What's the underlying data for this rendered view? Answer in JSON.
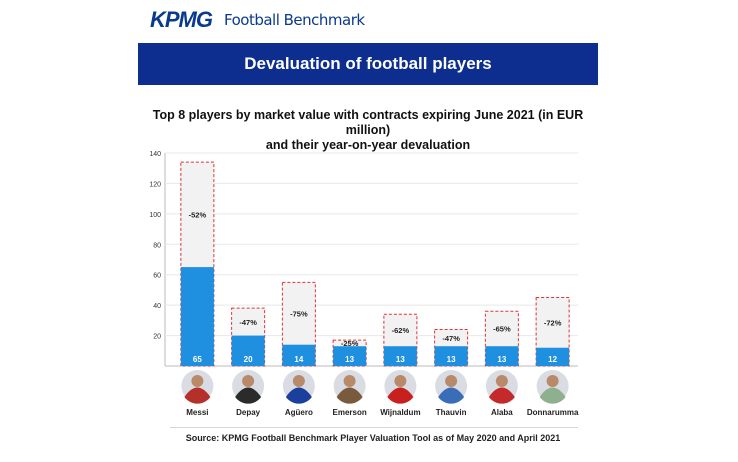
{
  "header": {
    "brand": "KPMG",
    "product": "Football Benchmark",
    "banner_title": "Devaluation of football players"
  },
  "colors": {
    "banner": "#0d2e8e",
    "bar_fill": "#1f8fe0",
    "previous_outline": "#e0323a",
    "previous_fill": "#f2f2f2"
  },
  "chart_data": {
    "type": "bar",
    "title_line1": "Top 8 players by market value with contracts expiring June 2021 (in EUR million)",
    "title_line2": "and their year-on-year devaluation",
    "ylim": [
      0,
      140
    ],
    "yticks": [
      20,
      40,
      60,
      80,
      100,
      120,
      140
    ],
    "categories": [
      "Messi",
      "Depay",
      "Agüero",
      "Emerson",
      "Wijnaldum",
      "Thauvin",
      "Alaba",
      "Donnarumma"
    ],
    "series": [
      {
        "values": [
          65,
          20,
          14,
          13,
          13,
          13,
          13,
          12
        ]
      },
      {
        "values": [
          134,
          38,
          55,
          17,
          34,
          24,
          36,
          45
        ]
      }
    ],
    "value_labels": [
      "65",
      "20",
      "14",
      "13",
      "13",
      "13",
      "13",
      "12"
    ],
    "devaluation_labels": [
      "-52%",
      "-47%",
      "-75%",
      "-25%",
      "-62%",
      "-47%",
      "-65%",
      "-72%"
    ],
    "player_icons": [
      "messi-photo",
      "depay-photo",
      "aguero-photo",
      "emerson-photo",
      "wijnaldum-photo",
      "thauvin-photo",
      "alaba-photo",
      "donnarumma-photo"
    ],
    "grid": true
  },
  "footer": {
    "source": "Source: KPMG Football Benchmark Player Valuation Tool as of May 2020 and April 2021"
  }
}
